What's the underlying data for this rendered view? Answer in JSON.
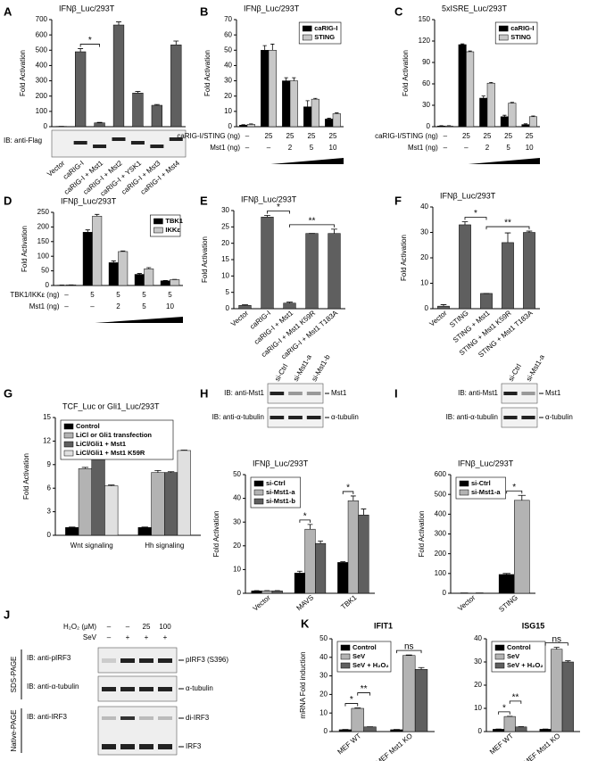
{
  "chart_data": [
    {
      "type": "bar",
      "panel": "A",
      "title": "IFNβ_Luc/293T",
      "ylabel": "Fold Activation",
      "categories": [
        "Vector",
        "caRIG-I",
        "caRIG-I + Mst1",
        "caRIG-I + Mst2",
        "caRIG-I + YSK1",
        "caRIG-I + Mst3",
        "caRIG-I + Mst4"
      ],
      "values": [
        2,
        490,
        25,
        665,
        220,
        140,
        535
      ],
      "errors": [
        0,
        20,
        3,
        20,
        10,
        5,
        25
      ],
      "color": "#5f5f5f",
      "ylim": [
        0,
        700
      ],
      "yticks": [
        0,
        100,
        200,
        300,
        400,
        500,
        600,
        700
      ],
      "annotations": [
        "*"
      ],
      "blot": {
        "rows": [
          {
            "antibody": "IB: anti-Flag"
          }
        ]
      }
    },
    {
      "type": "bar",
      "panel": "B",
      "title": "IFNβ_Luc/293T",
      "ylabel": "Fold Activation",
      "categories": [
        null,
        null,
        null,
        null,
        null
      ],
      "series": [
        {
          "name": "caRIG-I",
          "color": "#000000",
          "values": [
            1,
            50,
            30,
            13,
            5
          ],
          "errors": [
            0.3,
            3,
            2,
            4,
            0.5
          ]
        },
        {
          "name": "STING",
          "color": "#c8c8c8",
          "values": [
            1.5,
            50,
            30,
            18,
            8.5
          ],
          "errors": [
            0.3,
            4,
            2,
            0.5,
            0.5
          ]
        }
      ],
      "ylim": [
        0,
        70
      ],
      "yticks": [
        0,
        10,
        20,
        30,
        40,
        50,
        60,
        70
      ],
      "legend": "upper right",
      "condition_rows": [
        {
          "label": "caRIG-I/STING (ng)",
          "values": [
            "–",
            "25",
            "25",
            "25",
            "25"
          ]
        },
        {
          "label": "Mst1 (ng)",
          "values": [
            "–",
            "–",
            "2",
            "5",
            "10"
          ]
        }
      ]
    },
    {
      "type": "bar",
      "panel": "C",
      "title": "5xISRE_Luc/293T",
      "ylabel": "Fold Activation",
      "categories": [
        null,
        null,
        null,
        null,
        null
      ],
      "series": [
        {
          "name": "caRIG-I",
          "color": "#000000",
          "values": [
            1,
            115,
            40,
            14,
            3
          ],
          "errors": [
            0.3,
            1,
            3,
            2,
            1
          ]
        },
        {
          "name": "STING",
          "color": "#c8c8c8",
          "values": [
            1,
            105,
            61,
            33,
            14
          ],
          "errors": [
            0.3,
            1,
            1,
            1,
            1
          ]
        }
      ],
      "ylim": [
        0,
        150
      ],
      "yticks": [
        0,
        30,
        60,
        90,
        120,
        150
      ],
      "legend": "upper right",
      "condition_rows": [
        {
          "label": "caRIG-I/STING (ng)",
          "values": [
            "–",
            "25",
            "25",
            "25",
            "25"
          ]
        },
        {
          "label": "Mst1 (ng)",
          "values": [
            "–",
            "–",
            "2",
            "5",
            "10"
          ]
        }
      ]
    },
    {
      "type": "bar",
      "panel": "D",
      "title": "IFNβ_Luc/293T",
      "ylabel": "Fold Activation",
      "categories": [
        null,
        null,
        null,
        null,
        null
      ],
      "series": [
        {
          "name": "TBK1",
          "color": "#000000",
          "values": [
            1,
            182,
            78,
            38,
            16
          ],
          "errors": [
            0.3,
            8,
            6,
            3,
            1
          ]
        },
        {
          "name": "IKKε",
          "color": "#c8c8c8",
          "values": [
            2,
            237,
            116,
            57,
            20
          ],
          "errors": [
            0.3,
            6,
            2,
            4,
            1
          ]
        }
      ],
      "ylim": [
        0,
        250
      ],
      "yticks": [
        0,
        50,
        100,
        150,
        200,
        250
      ],
      "legend": "upper right",
      "condition_rows": [
        {
          "label": "TBK1/IKKε (ng)",
          "values": [
            "–",
            "5",
            "5",
            "5",
            "5"
          ]
        },
        {
          "label": "Mst1 (ng)",
          "values": [
            "–",
            "–",
            "2",
            "5",
            "10"
          ]
        }
      ]
    },
    {
      "type": "bar",
      "panel": "E",
      "title": "IFNβ_Luc/293T",
      "ylabel": "Fold Activation",
      "categories": [
        "Vector",
        "caRIG-I",
        "caRIG-I + Mst1",
        "caRIG-I + Mst1 K59R",
        "caRIG-I + Mst1 T183A"
      ],
      "values": [
        1,
        28,
        1.7,
        23,
        23
      ],
      "errors": [
        0.2,
        0.5,
        0.3,
        0,
        1.3
      ],
      "color": "#5f5f5f",
      "ylim": [
        0,
        30
      ],
      "yticks": [
        0,
        5,
        10,
        15,
        20,
        25,
        30
      ],
      "annotations": [
        "*",
        "**"
      ]
    },
    {
      "type": "bar",
      "panel": "F",
      "title": "IFNβ_Luc/293T",
      "ylabel": "Fold Activation",
      "categories": [
        "Vector",
        "STING",
        "STING + Mst1",
        "STING + Mst1 K59R",
        "STING + Mst1 T183A"
      ],
      "values": [
        1,
        33,
        6,
        26,
        30
      ],
      "errors": [
        0.6,
        1.2,
        0,
        3.8,
        0.5
      ],
      "color": "#5f5f5f",
      "ylim": [
        0,
        40
      ],
      "yticks": [
        0,
        10,
        20,
        30,
        40
      ],
      "annotations": [
        "*",
        "**"
      ]
    },
    {
      "type": "bar",
      "panel": "G",
      "title": "TCF_Luc or Gli1_Luc/293T",
      "ylabel": "Fold Activation",
      "categories": [
        "Wnt signaling",
        "Hh signaling"
      ],
      "series": [
        {
          "name": "Control",
          "color": "#000000",
          "values": [
            1,
            1
          ],
          "errors": [
            0.05,
            0.05
          ]
        },
        {
          "name": "LiCl or Gli1 transfection",
          "color": "#b3b3b3",
          "values": [
            8.5,
            8
          ],
          "errors": [
            0.15,
            0.25
          ]
        },
        {
          "name": "LiCl/Gli1 + Mst1",
          "color": "#5f5f5f",
          "values": [
            11.1,
            8
          ],
          "errors": [
            0.5,
            0.1
          ]
        },
        {
          "name": "LiCl/Gli1 + Mst1 K59R",
          "color": "#e0e0e0",
          "values": [
            6.3,
            10.8
          ],
          "errors": [
            0.1,
            0.05
          ]
        }
      ],
      "ylim": [
        0,
        15
      ],
      "yticks": [
        0,
        3,
        6,
        9,
        12,
        15
      ],
      "legend": "upper left"
    },
    {
      "type": "bar",
      "panel": "H",
      "title": "IFNβ_Luc/293T",
      "ylabel": "Fold Activation",
      "categories": [
        "Vector",
        "MAVS",
        "TBK1"
      ],
      "series": [
        {
          "name": "si-Ctrl",
          "color": "#000000",
          "values": [
            1,
            8.5,
            13
          ],
          "errors": [
            0.1,
            0.8,
            0.3
          ]
        },
        {
          "name": "si-Mst1-a",
          "color": "#b3b3b3",
          "values": [
            1,
            27,
            39
          ],
          "errors": [
            0.1,
            2,
            2
          ]
        },
        {
          "name": "si-Mst1-b",
          "color": "#5f5f5f",
          "values": [
            1,
            21,
            33
          ],
          "errors": [
            0.1,
            1,
            2.5
          ]
        }
      ],
      "ylim": [
        0,
        50
      ],
      "yticks": [
        0,
        10,
        20,
        30,
        40,
        50
      ],
      "legend": "upper left",
      "annotations": [
        "*",
        "*"
      ],
      "blot": {
        "lanes": [
          "si-Ctrl",
          "si-Mst1-a",
          "si-Mst1-b"
        ],
        "rows": [
          {
            "antibody": "IB: anti-Mst1",
            "band": "Mst1"
          },
          {
            "antibody": "IB: anti-α-tubulin",
            "band": "α-tubulin"
          }
        ]
      }
    },
    {
      "type": "bar",
      "panel": "I",
      "title": "IFNβ_Luc/293T",
      "ylabel": "Fold Activation",
      "categories": [
        "Vector",
        "STING"
      ],
      "series": [
        {
          "name": "si-Ctrl",
          "color": "#000000",
          "values": [
            1,
            95
          ],
          "errors": [
            0.5,
            5
          ]
        },
        {
          "name": "si-Mst1-a",
          "color": "#b3b3b3",
          "values": [
            1,
            470
          ],
          "errors": [
            0.5,
            25
          ]
        }
      ],
      "ylim": [
        0,
        600
      ],
      "yticks": [
        0,
        100,
        200,
        300,
        400,
        500,
        600
      ],
      "legend": "upper left",
      "annotations": [
        "*"
      ],
      "blot": {
        "lanes": [
          "si-Ctrl",
          "si-Mst1-a"
        ],
        "rows": [
          {
            "antibody": "IB: anti-Mst1",
            "band": "Mst1"
          },
          {
            "antibody": "IB: anti-α-tubulin",
            "band": "α-tubulin"
          }
        ]
      }
    },
    {
      "type": "bar",
      "panel": "K",
      "title": "IFIT1",
      "ylabel": "mRNA Fold induction",
      "categories": [
        "MEF WT",
        "MEF Mst1 KO"
      ],
      "series": [
        {
          "name": "Control",
          "color": "#000000",
          "values": [
            1,
            1
          ],
          "errors": [
            0.1,
            0.1
          ]
        },
        {
          "name": "SeV",
          "color": "#b3b3b3",
          "values": [
            12.5,
            41
          ],
          "errors": [
            0.2,
            0.3
          ]
        },
        {
          "name": "SeV + H₂O₂",
          "color": "#5f5f5f",
          "values": [
            2.5,
            33.5
          ],
          "errors": [
            0.1,
            1
          ]
        }
      ],
      "ylim": [
        0,
        50
      ],
      "yticks": [
        0,
        10,
        20,
        30,
        40,
        50
      ],
      "legend": "upper left",
      "annotations": [
        "*",
        "**",
        "ns"
      ]
    },
    {
      "type": "bar",
      "title": "ISG15",
      "categories": [
        "MEF WT",
        "MEF Mst1 KO"
      ],
      "series": [
        {
          "name": "Control",
          "color": "#000000",
          "values": [
            1,
            1
          ],
          "errors": [
            0.1,
            0.1
          ]
        },
        {
          "name": "SeV",
          "color": "#b3b3b3",
          "values": [
            6.5,
            35.5
          ],
          "errors": [
            0.1,
            0.8
          ]
        },
        {
          "name": "SeV + H₂O₂",
          "color": "#5f5f5f",
          "values": [
            2,
            30
          ],
          "errors": [
            0.1,
            0.5
          ]
        }
      ],
      "ylim": [
        0,
        40
      ],
      "yticks": [
        0,
        10,
        20,
        30,
        40
      ],
      "legend": "upper left",
      "annotations": [
        "*",
        "**",
        "ns"
      ]
    }
  ],
  "blot_panel": {
    "panel": "J",
    "treatments": [
      {
        "label": "H₂O₂ (μM)",
        "values": [
          "–",
          "–",
          "25",
          "100"
        ]
      },
      {
        "label": "SeV",
        "values": [
          "–",
          "+",
          "+",
          "+"
        ]
      }
    ],
    "gels": [
      {
        "label": "SDS-PAGE",
        "rows": [
          {
            "antibody": "IB: anti-pIRF3",
            "bands": [
              "pIRF3 (S396)"
            ]
          },
          {
            "antibody": "IB: anti-α-tubulin",
            "bands": [
              "α-tubulin"
            ]
          }
        ]
      },
      {
        "label": "Native-PAGE",
        "rows": [
          {
            "antibody": "IB: anti-IRF3",
            "bands": [
              "di-IRF3",
              "IRF3"
            ]
          }
        ]
      }
    ]
  }
}
